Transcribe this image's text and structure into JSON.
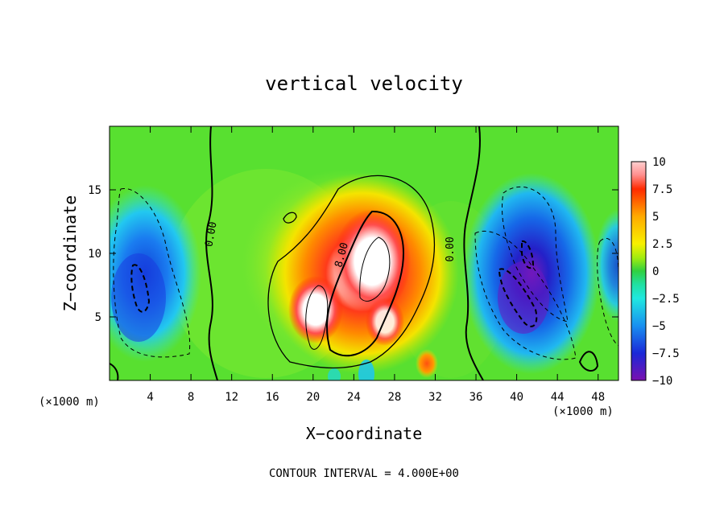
{
  "chart_data": {
    "type": "heatmap",
    "title": "vertical velocity",
    "xlabel": "X−coordinate",
    "ylabel": "Z−coordinate",
    "x_unit_label_left": "(×1000 m)",
    "x_unit_label_right": "(×1000 m)",
    "xlim": [
      0,
      50
    ],
    "ylim": [
      0,
      20
    ],
    "x_ticks": [
      4,
      8,
      12,
      16,
      20,
      24,
      28,
      32,
      36,
      40,
      44,
      48
    ],
    "x_tick_labels": [
      "4",
      "8",
      "12",
      "16",
      "20",
      "24",
      "28",
      "32",
      "36",
      "40",
      "44",
      "48"
    ],
    "y_ticks": [
      5,
      10,
      15
    ],
    "y_tick_labels": [
      "5",
      "10",
      "15"
    ],
    "colorbar": {
      "range": [
        -10,
        10
      ],
      "ticks": [
        10,
        7.5,
        5,
        2.5,
        0,
        -2.5,
        -5,
        -7.5,
        -10
      ],
      "tick_labels": [
        "10",
        "7.5",
        "5",
        "2.5",
        "0",
        "−2.5",
        "−5",
        "−7.5",
        "−10"
      ]
    },
    "contour_interval_text": "CONTOUR INTERVAL = 4.000E+00",
    "contour_labels": [
      "0.00",
      "8.00",
      "0.00"
    ],
    "grid": false,
    "features": [
      {
        "x": 3,
        "z": 8,
        "w": -7
      },
      {
        "x": 25,
        "z": 10,
        "w": 10
      },
      {
        "x": 19,
        "z": 6,
        "w": 9
      },
      {
        "x": 27,
        "z": 6,
        "w": 9
      },
      {
        "x": 31,
        "z": 1.5,
        "w": 6
      },
      {
        "x": 40,
        "z": 6,
        "w": -9
      },
      {
        "x": 41,
        "z": 10,
        "w": -7
      },
      {
        "x": 49,
        "z": 8,
        "w": -4
      }
    ]
  }
}
